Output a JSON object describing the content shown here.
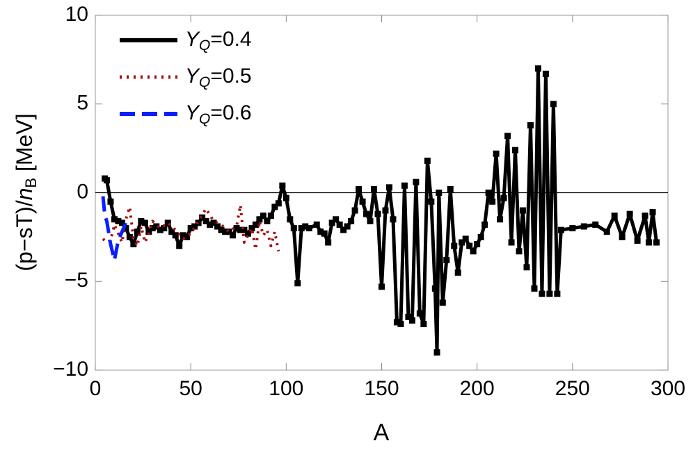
{
  "chart_data": {
    "type": "line",
    "xlabel": "A",
    "ylabel": {
      "prefix": "(p−sT)/",
      "var": "n",
      "sub": "B",
      "suffix": " [MeV]"
    },
    "xlim": [
      0,
      300
    ],
    "xticks": [
      0,
      50,
      100,
      150,
      200,
      250,
      300
    ],
    "ylim": [
      -10,
      10
    ],
    "yticks": [
      {
        "value": -10,
        "label": "−10"
      },
      {
        "value": -5,
        "label": "−5"
      },
      0,
      5,
      10
    ],
    "legend": "upper left",
    "series": [
      {
        "name": {
          "main": "Y",
          "sub": "Q",
          "rest": "=0.4"
        },
        "color": "#000000",
        "style": "solid",
        "markers": true,
        "x": [
          5,
          6,
          8,
          10,
          12,
          14,
          16,
          18,
          20,
          22,
          24,
          26,
          28,
          30,
          32,
          34,
          36,
          38,
          40,
          42,
          44,
          46,
          48,
          50,
          52,
          54,
          56,
          58,
          60,
          62,
          64,
          66,
          68,
          70,
          72,
          74,
          76,
          78,
          80,
          82,
          84,
          86,
          88,
          90,
          92,
          94,
          96,
          98,
          100,
          102,
          104,
          106,
          108,
          110,
          112,
          116,
          118,
          120,
          122,
          124,
          126,
          128,
          130,
          132,
          134,
          136,
          138,
          140,
          142,
          144,
          146,
          148,
          150,
          152,
          154,
          156,
          158,
          160,
          162,
          164,
          166,
          168,
          170,
          172,
          174,
          176,
          178,
          179,
          180,
          182,
          184,
          186,
          188,
          190,
          192,
          194,
          196,
          198,
          200,
          202,
          204,
          206,
          208,
          210,
          212,
          214,
          216,
          218,
          220,
          222,
          224,
          226,
          228,
          230,
          232,
          234,
          236,
          238,
          240,
          242,
          244,
          250,
          256,
          262,
          268,
          272,
          276,
          280,
          284,
          288,
          290,
          292,
          294
        ],
        "values": [
          0.8,
          0.7,
          -0.5,
          -1.5,
          -1.6,
          -1.7,
          -2.0,
          -2.5,
          -2.9,
          -2.2,
          -1.6,
          -1.7,
          -2.2,
          -2.0,
          -1.9,
          -2.1,
          -2.0,
          -1.7,
          -2.2,
          -2.4,
          -3.0,
          -2.4,
          -2.5,
          -2.0,
          -1.9,
          -1.7,
          -1.4,
          -1.6,
          -1.8,
          -1.7,
          -1.9,
          -2.1,
          -2.2,
          -2.2,
          -2.4,
          -2.0,
          -2.1,
          -2.1,
          -2.3,
          -2.0,
          -1.8,
          -1.5,
          -1.3,
          -1.6,
          -1.3,
          -0.8,
          -0.6,
          0.4,
          -0.3,
          -1.5,
          -2.0,
          -5.1,
          -2.0,
          -1.9,
          -2.0,
          -1.8,
          -2.2,
          -2.3,
          -2.8,
          -1.7,
          -1.5,
          -1.8,
          -2.1,
          -1.9,
          -1.6,
          -1.0,
          0.2,
          -0.5,
          -1.2,
          -1.6,
          0.2,
          -1.2,
          -5.3,
          -1.0,
          0.3,
          -1.5,
          -7.3,
          -7.4,
          0.4,
          -7.0,
          -7.2,
          0.6,
          -6.8,
          -7.4,
          1.8,
          -0.5,
          -5.4,
          -9.0,
          0.0,
          -6.2,
          -3.8,
          0.2,
          -3.0,
          -4.5,
          -2.8,
          -2.6,
          -3.0,
          -3.3,
          -2.9,
          -2.5,
          -1.8,
          0.0,
          -0.5,
          2.2,
          -1.5,
          -0.3,
          3.2,
          -2.8,
          2.4,
          -3.3,
          -1.0,
          -4.2,
          3.8,
          -5.4,
          7.0,
          -5.7,
          6.7,
          -5.7,
          5.0,
          -5.7,
          -2.1,
          -2.0,
          -1.9,
          -1.8,
          -2.2,
          -1.3,
          -2.5,
          -1.2,
          -2.7,
          -1.3,
          -2.8,
          -1.1,
          -2.8
        ]
      },
      {
        "name": {
          "main": "Y",
          "sub": "Q",
          "rest": "=0.5"
        },
        "color": "#a50f0f",
        "style": "dotted",
        "markers": false,
        "x": [
          4,
          6,
          8,
          10,
          12,
          14,
          16,
          18,
          20,
          22,
          24,
          26,
          28,
          30,
          34,
          38,
          42,
          46,
          50,
          54,
          58,
          62,
          66,
          70,
          74,
          76,
          78,
          82,
          84,
          86,
          88,
          90,
          92,
          94,
          96
        ],
        "values": [
          -2.6,
          -2.8,
          -2.7,
          -1.8,
          -2.3,
          -2.8,
          -1.5,
          -0.8,
          -2.6,
          -3.0,
          -1.9,
          -2.8,
          -2.3,
          -1.6,
          -2.0,
          -1.7,
          -2.1,
          -2.6,
          -2.3,
          -1.6,
          -0.9,
          -1.6,
          -1.8,
          -2.2,
          -1.9,
          -0.7,
          -2.8,
          -2.0,
          -3.2,
          -1.6,
          -2.4,
          -2.1,
          -3.0,
          -2.2,
          -3.3
        ]
      },
      {
        "name": {
          "main": "Y",
          "sub": "Q",
          "rest": "=0.6"
        },
        "color": "#0a1eff",
        "style": "dashed",
        "markers": false,
        "x": [
          4,
          5,
          6,
          8,
          10,
          12,
          14,
          16
        ],
        "values": [
          -0.2,
          -1.3,
          -1.6,
          -2.9,
          -3.8,
          -2.7,
          -2.2,
          -1.7
        ]
      }
    ]
  }
}
